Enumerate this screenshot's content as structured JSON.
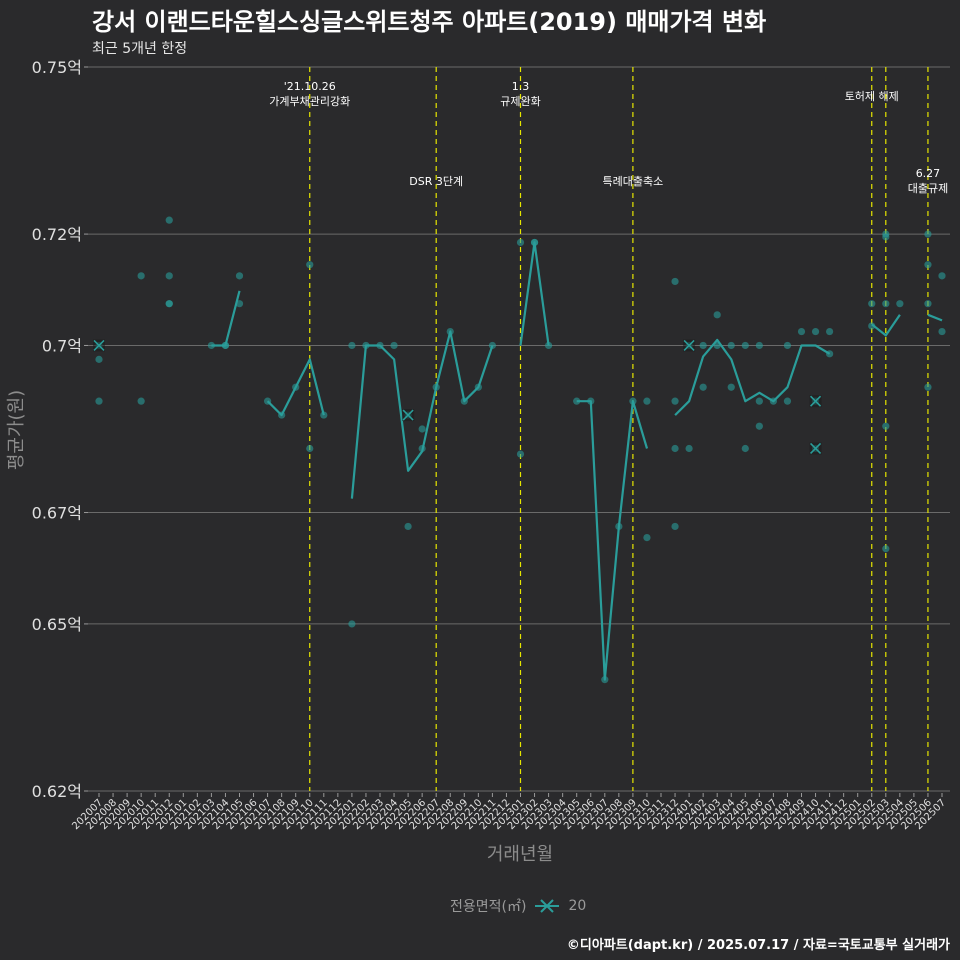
{
  "chart_data": {
    "type": "line",
    "title": "강서 이랜드타운힐스싱글스위트청주 아파트(2019) 매매가격 변화",
    "subtitle": "최근 5개년 한정",
    "xlabel": "거래년월",
    "ylabel": "평균가(원)",
    "ylim": [
      0.62,
      0.75
    ],
    "yticks": [
      0.62,
      0.65,
      0.67,
      0.7,
      0.72,
      0.75
    ],
    "ytick_labels": [
      "0.62억",
      "0.65억",
      "0.67억",
      "0.7억",
      "0.72억",
      "0.75억"
    ],
    "categories": [
      "202007",
      "202008",
      "202009",
      "202010",
      "202011",
      "202012",
      "202101",
      "202102",
      "202103",
      "202104",
      "202105",
      "202106",
      "202107",
      "202108",
      "202109",
      "202110",
      "202111",
      "202112",
      "202201",
      "202202",
      "202203",
      "202204",
      "202205",
      "202206",
      "202207",
      "202208",
      "202209",
      "202210",
      "202211",
      "202212",
      "202301",
      "202302",
      "202303",
      "202304",
      "202305",
      "202306",
      "202307",
      "202308",
      "202309",
      "202310",
      "202311",
      "202312",
      "202401",
      "202402",
      "202403",
      "202404",
      "202405",
      "202406",
      "202407",
      "202408",
      "202409",
      "202410",
      "202411",
      "202412",
      "202501",
      "202502",
      "202503",
      "202504",
      "202505",
      "202506",
      "202507"
    ],
    "series": [
      {
        "name": "20",
        "values": [
          0.7,
          null,
          null,
          null,
          null,
          null,
          null,
          null,
          0.7,
          0.7,
          0.7098,
          null,
          0.69,
          0.6875,
          0.6925,
          0.6975,
          0.6875,
          null,
          0.6725,
          0.7,
          0.7,
          0.6975,
          0.6775,
          0.681,
          0.6925,
          0.7025,
          0.69,
          0.6925,
          0.7,
          null,
          0.7,
          0.7185,
          0.7,
          null,
          0.69,
          0.69,
          0.64,
          0.6675,
          0.69,
          0.6815,
          null,
          0.6875,
          0.69,
          0.698,
          0.701,
          0.6975,
          0.69,
          0.6915,
          0.69,
          0.6925,
          0.7,
          0.7,
          0.6985,
          null,
          null,
          0.7038,
          0.7018,
          0.7055,
          null,
          0.7055,
          0.7045
        ]
      }
    ],
    "scatter": [
      {
        "x": "202007",
        "y": 0.7
      },
      {
        "x": "202007",
        "y": 0.6975
      },
      {
        "x": "202007",
        "y": 0.69
      },
      {
        "x": "202010",
        "y": 0.7125
      },
      {
        "x": "202010",
        "y": 0.69
      },
      {
        "x": "202012",
        "y": 0.7225
      },
      {
        "x": "202012",
        "y": 0.7125
      },
      {
        "x": "202012",
        "y": 0.7075
      },
      {
        "x": "202012",
        "y": 0.7075
      },
      {
        "x": "202103",
        "y": 0.7
      },
      {
        "x": "202104",
        "y": 0.7
      },
      {
        "x": "202104",
        "y": 0.7
      },
      {
        "x": "202105",
        "y": 0.7125
      },
      {
        "x": "202105",
        "y": 0.7075
      },
      {
        "x": "202107",
        "y": 0.69
      },
      {
        "x": "202108",
        "y": 0.6875
      },
      {
        "x": "202109",
        "y": 0.6925
      },
      {
        "x": "202110",
        "y": 0.7145
      },
      {
        "x": "202110",
        "y": 0.6815
      },
      {
        "x": "202111",
        "y": 0.6875
      },
      {
        "x": "202201",
        "y": 0.7
      },
      {
        "x": "202201",
        "y": 0.65
      },
      {
        "x": "202202",
        "y": 0.7
      },
      {
        "x": "202203",
        "y": 0.7
      },
      {
        "x": "202204",
        "y": 0.7
      },
      {
        "x": "202205",
        "y": 0.6875
      },
      {
        "x": "202205",
        "y": 0.6675
      },
      {
        "x": "202206",
        "y": 0.685
      },
      {
        "x": "202206",
        "y": 0.6815
      },
      {
        "x": "202207",
        "y": 0.6925
      },
      {
        "x": "202208",
        "y": 0.7025
      },
      {
        "x": "202209",
        "y": 0.69
      },
      {
        "x": "202210",
        "y": 0.6925
      },
      {
        "x": "202211",
        "y": 0.7
      },
      {
        "x": "202301",
        "y": 0.7185
      },
      {
        "x": "202301",
        "y": 0.6805
      },
      {
        "x": "202302",
        "y": 0.7185
      },
      {
        "x": "202302",
        "y": 0.7185
      },
      {
        "x": "202303",
        "y": 0.7
      },
      {
        "x": "202305",
        "y": 0.69
      },
      {
        "x": "202306",
        "y": 0.69
      },
      {
        "x": "202307",
        "y": 0.64
      },
      {
        "x": "202308",
        "y": 0.6675
      },
      {
        "x": "202309",
        "y": 0.69
      },
      {
        "x": "202310",
        "y": 0.69
      },
      {
        "x": "202310",
        "y": 0.6655
      },
      {
        "x": "202312",
        "y": 0.7115
      },
      {
        "x": "202312",
        "y": 0.69
      },
      {
        "x": "202312",
        "y": 0.6815
      },
      {
        "x": "202312",
        "y": 0.6675
      },
      {
        "x": "202401",
        "y": 0.7
      },
      {
        "x": "202401",
        "y": 0.6815
      },
      {
        "x": "202402",
        "y": 0.7
      },
      {
        "x": "202402",
        "y": 0.6925
      },
      {
        "x": "202403",
        "y": 0.7055
      },
      {
        "x": "202403",
        "y": 0.7
      },
      {
        "x": "202404",
        "y": 0.7
      },
      {
        "x": "202404",
        "y": 0.6925
      },
      {
        "x": "202405",
        "y": 0.7
      },
      {
        "x": "202405",
        "y": 0.6815
      },
      {
        "x": "202406",
        "y": 0.7
      },
      {
        "x": "202406",
        "y": 0.69
      },
      {
        "x": "202406",
        "y": 0.6855
      },
      {
        "x": "202407",
        "y": 0.69
      },
      {
        "x": "202408",
        "y": 0.7
      },
      {
        "x": "202408",
        "y": 0.69
      },
      {
        "x": "202409",
        "y": 0.7025
      },
      {
        "x": "202410",
        "y": 0.7025
      },
      {
        "x": "202410",
        "y": 0.69
      },
      {
        "x": "202410",
        "y": 0.6815
      },
      {
        "x": "202411",
        "y": 0.7025
      },
      {
        "x": "202411",
        "y": 0.6985
      },
      {
        "x": "202502",
        "y": 0.7075
      },
      {
        "x": "202502",
        "y": 0.7035
      },
      {
        "x": "202503",
        "y": 0.72
      },
      {
        "x": "202503",
        "y": 0.7195
      },
      {
        "x": "202503",
        "y": 0.7075
      },
      {
        "x": "202503",
        "y": 0.6855
      },
      {
        "x": "202503",
        "y": 0.6635
      },
      {
        "x": "202504",
        "y": 0.7075
      },
      {
        "x": "202506",
        "y": 0.72
      },
      {
        "x": "202506",
        "y": 0.7145
      },
      {
        "x": "202506",
        "y": 0.7075
      },
      {
        "x": "202506",
        "y": 0.6925
      },
      {
        "x": "202507",
        "y": 0.7125
      },
      {
        "x": "202507",
        "y": 0.7025
      }
    ],
    "cross_markers": [
      {
        "x": "202007",
        "y": 0.7
      },
      {
        "x": "202205",
        "y": 0.6875
      },
      {
        "x": "202401",
        "y": 0.7
      },
      {
        "x": "202410",
        "y": 0.69
      },
      {
        "x": "202410",
        "y": 0.6815
      }
    ],
    "events": [
      {
        "x": "202110",
        "lines": [
          "'21.10.26",
          "가계부채관리강화"
        ],
        "level": 1
      },
      {
        "x": "202207",
        "lines": [
          "DSR 3단계"
        ],
        "level": 2
      },
      {
        "x": "202301",
        "lines": [
          "1.3",
          "규제완화"
        ],
        "level": 1
      },
      {
        "x": "202309",
        "lines": [
          "특례대출축소"
        ],
        "level": 2
      },
      {
        "x": "202502",
        "lines": [
          "토허제 해제"
        ],
        "level": 1
      },
      {
        "x": "202503",
        "lines": [],
        "level": 1
      },
      {
        "x": "202506",
        "lines": [
          "6.27",
          "대출규제"
        ],
        "level": 3
      }
    ],
    "legend_title": "전용면적(㎡)",
    "legend_label": "20",
    "line_color": "#2a9d9a",
    "event_color": "#e6e600",
    "legend_position": "bottom"
  },
  "footer": "©디아파트(dapt.kr) / 2025.07.17 / 자료=국토교통부 실거래가"
}
